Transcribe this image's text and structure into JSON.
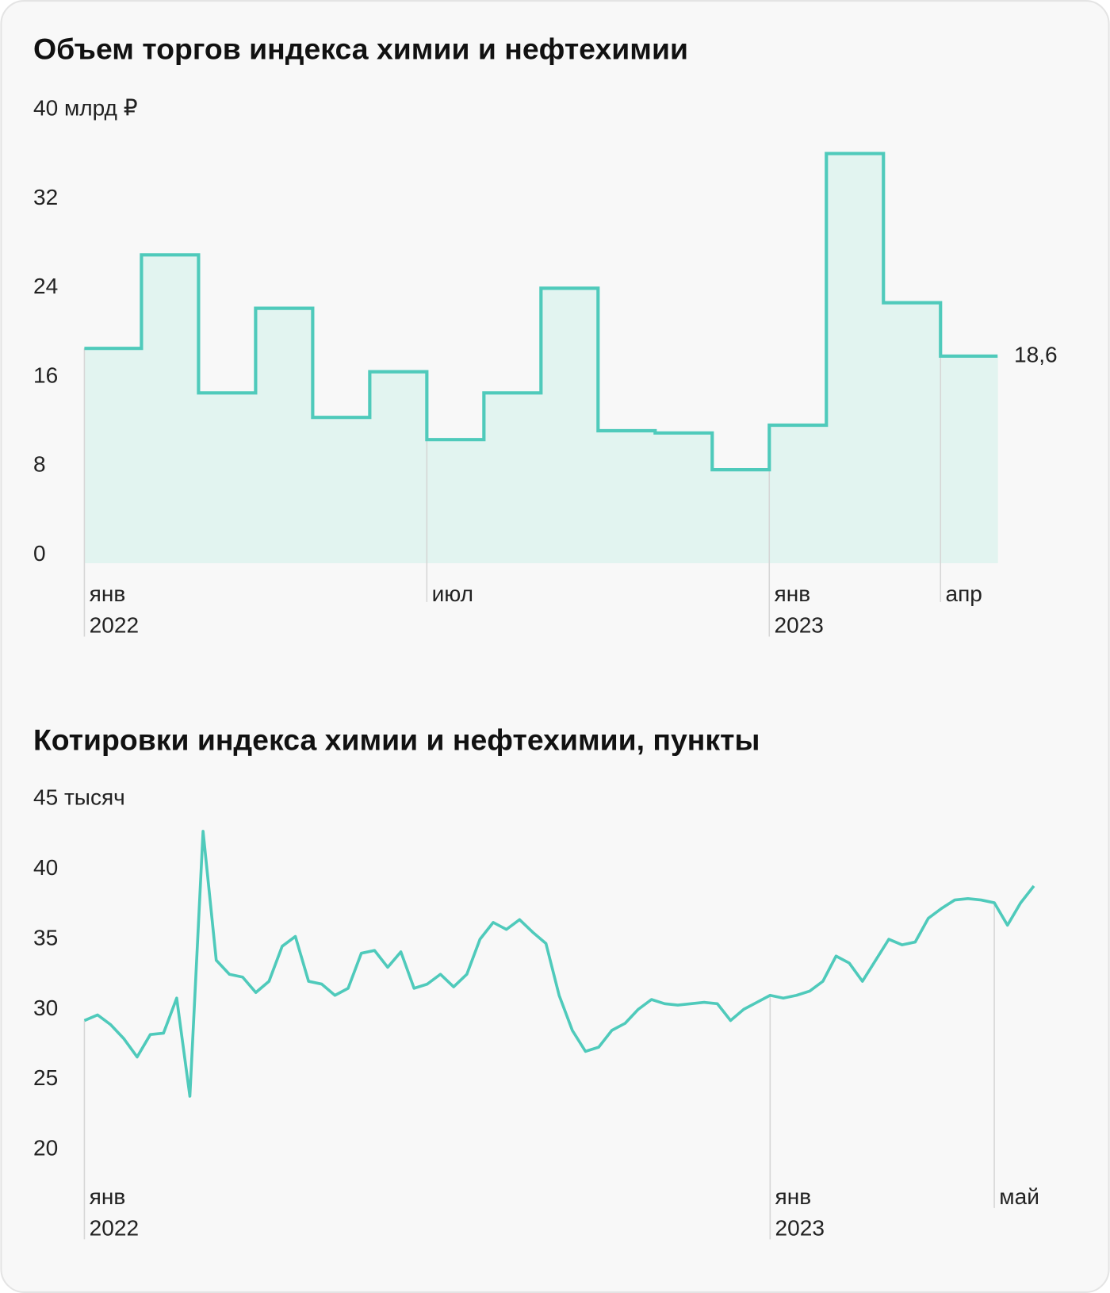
{
  "chart_data": [
    {
      "type": "step",
      "title": "Объем торгов индекса химии и нефтехимии",
      "categories": [
        "янв",
        null,
        null,
        null,
        null,
        null,
        "июл",
        null,
        null,
        null,
        null,
        null,
        "янв",
        null,
        null,
        "апр"
      ],
      "years": [
        "2022",
        null,
        null,
        null,
        null,
        null,
        null,
        null,
        null,
        null,
        null,
        null,
        "2023",
        null,
        null,
        null
      ],
      "values": [
        19.3,
        27.7,
        15.3,
        22.9,
        13.1,
        17.2,
        11.1,
        15.3,
        24.7,
        11.9,
        11.7,
        8.4,
        12.4,
        36.8,
        23.4,
        18.6
      ],
      "value_labels": [
        null,
        null,
        null,
        null,
        null,
        null,
        null,
        null,
        null,
        null,
        null,
        null,
        null,
        null,
        null,
        "18,6"
      ],
      "color": "#4fcabb",
      "fill": "#e2f4f0",
      "ylim": [
        0,
        40
      ],
      "yticks": [
        0,
        8,
        16,
        24,
        32,
        {
          "value": 40,
          "label": "40 млрд ₽"
        }
      ]
    },
    {
      "type": "line",
      "title": "Котировки индекса химии и нефтехимии, пункты",
      "categories": [
        "янв",
        null,
        null,
        null,
        null,
        null,
        null,
        null,
        null,
        null,
        null,
        null,
        null,
        null,
        null,
        null,
        null,
        null,
        null,
        null,
        null,
        null,
        null,
        null,
        null,
        null,
        null,
        null,
        null,
        null,
        null,
        null,
        null,
        null,
        null,
        null,
        null,
        null,
        null,
        null,
        null,
        null,
        null,
        null,
        null,
        null,
        null,
        null,
        null,
        null,
        null,
        null,
        "янв",
        null,
        null,
        null,
        null,
        null,
        null,
        null,
        null,
        null,
        null,
        null,
        null,
        null,
        null,
        null,
        null,
        "май",
        null,
        null,
        null
      ],
      "years": [
        "2022",
        null,
        null,
        null,
        null,
        null,
        null,
        null,
        null,
        null,
        null,
        null,
        null,
        null,
        null,
        null,
        null,
        null,
        null,
        null,
        null,
        null,
        null,
        null,
        null,
        null,
        null,
        null,
        null,
        null,
        null,
        null,
        null,
        null,
        null,
        null,
        null,
        null,
        null,
        null,
        null,
        null,
        null,
        null,
        null,
        null,
        null,
        null,
        null,
        null,
        null,
        null,
        "2023",
        null,
        null,
        null,
        null,
        null,
        null,
        null,
        null,
        null,
        null,
        null,
        null,
        null,
        null,
        null,
        null,
        null,
        null,
        null,
        null
      ],
      "values": [
        29.2,
        29.6,
        28.9,
        27.9,
        26.6,
        28.2,
        28.3,
        30.8,
        23.8,
        42.7,
        33.5,
        32.5,
        32.3,
        31.2,
        32.0,
        34.5,
        35.2,
        32.0,
        31.8,
        31.0,
        31.5,
        34.0,
        34.2,
        33.0,
        34.1,
        31.5,
        31.8,
        32.5,
        31.6,
        32.5,
        35.0,
        36.2,
        35.7,
        36.4,
        35.5,
        34.7,
        31.0,
        28.5,
        27.0,
        27.3,
        28.5,
        29.0,
        30.0,
        30.7,
        30.4,
        30.3,
        30.4,
        30.5,
        30.4,
        29.2,
        30.0,
        30.5,
        31.0,
        30.8,
        31.0,
        31.3,
        32.0,
        33.8,
        33.3,
        32.0,
        33.5,
        35.0,
        34.6,
        34.8,
        36.5,
        37.2,
        37.8,
        37.9,
        37.8,
        37.6,
        36.0,
        37.6,
        38.8
      ],
      "color": "#4fcabb",
      "ylim": [
        20,
        45
      ],
      "yticks": [
        20,
        25,
        30,
        35,
        40,
        {
          "value": 45,
          "label": "45 тысяч"
        }
      ]
    }
  ]
}
